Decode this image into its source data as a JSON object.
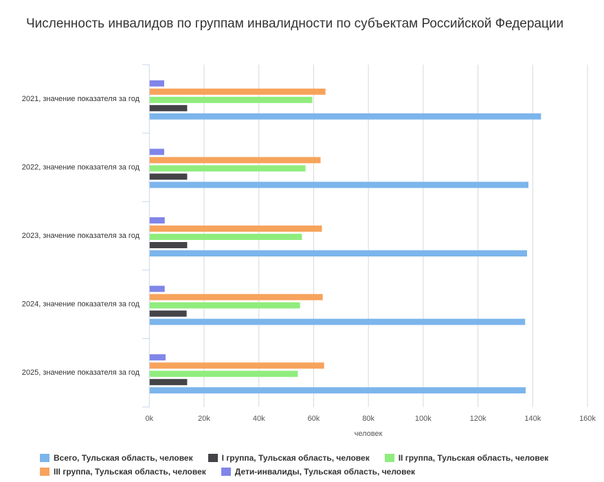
{
  "chart_data": {
    "type": "bar",
    "orientation": "horizontal",
    "title": "Численность инвалидов по группам инвалидности по субъектам Российской Федерации",
    "xlabel": "человек",
    "xlim": [
      0,
      160000
    ],
    "xticks": [
      "0k",
      "20k",
      "40k",
      "60k",
      "80k",
      "100k",
      "120k",
      "140k",
      "160k"
    ],
    "grid": true,
    "legend_position": "bottom",
    "categories": [
      "2021, значение показателя за год",
      "2022, значение показателя за год",
      "2023, значение показателя за год",
      "2024, значение показателя за год",
      "2025, значение показателя за год"
    ],
    "series": [
      {
        "name": "Дети-инвалиды, Тульская область, человек",
        "color": "#8085e9",
        "values": [
          5300,
          5300,
          5500,
          5500,
          5800
        ]
      },
      {
        "name": "III группа, Тульская область, человек",
        "color": "#f7a35c",
        "values": [
          64200,
          62400,
          62900,
          63200,
          63700
        ]
      },
      {
        "name": "II группа, Тульская область, человек",
        "color": "#90ed7d",
        "values": [
          59400,
          56900,
          55600,
          54900,
          54100
        ]
      },
      {
        "name": "I группа, Тульская область, человек",
        "color": "#434348",
        "values": [
          13700,
          13700,
          13700,
          13500,
          13700
        ]
      },
      {
        "name": "Всего, Тульская область, человек",
        "color": "#7cb5ec",
        "values": [
          142900,
          138300,
          137800,
          137100,
          137300
        ]
      }
    ],
    "legend_order": [
      4,
      3,
      2,
      1,
      0
    ]
  }
}
